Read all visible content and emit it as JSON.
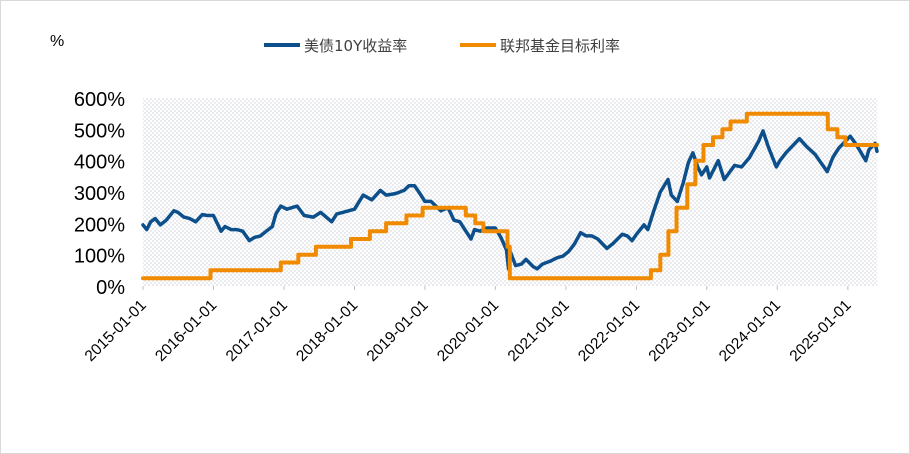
{
  "chart_data": {
    "type": "line",
    "unit_label": "%",
    "ylim": [
      0,
      600
    ],
    "y_ticks": [
      "0%",
      "100%",
      "200%",
      "300%",
      "400%",
      "500%",
      "600%"
    ],
    "x_range": [
      "2015-01-01",
      "2025-06-01"
    ],
    "x_ticks": [
      "2015-01-01",
      "2016-01-01",
      "2017-01-01",
      "2018-01-01",
      "2019-01-01",
      "2020-01-01",
      "2021-01-01",
      "2022-01-01",
      "2023-01-01",
      "2024-01-01",
      "2025-01-01"
    ],
    "legend_position": "top-center",
    "plot_background": "dotted",
    "series": [
      {
        "name": "美债10Y收益率",
        "color": "#0d4f8b",
        "line": "step-free",
        "points": [
          [
            "2015-01-01",
            195
          ],
          [
            "2015-01-20",
            180
          ],
          [
            "2015-02-10",
            205
          ],
          [
            "2015-03-05",
            215
          ],
          [
            "2015-04-01",
            195
          ],
          [
            "2015-05-01",
            210
          ],
          [
            "2015-06-10",
            240
          ],
          [
            "2015-07-01",
            235
          ],
          [
            "2015-08-01",
            220
          ],
          [
            "2015-09-01",
            215
          ],
          [
            "2015-10-01",
            205
          ],
          [
            "2015-11-05",
            228
          ],
          [
            "2015-12-01",
            225
          ],
          [
            "2016-01-01",
            225
          ],
          [
            "2016-02-10",
            175
          ],
          [
            "2016-03-01",
            190
          ],
          [
            "2016-04-01",
            180
          ],
          [
            "2016-05-01",
            180
          ],
          [
            "2016-06-01",
            175
          ],
          [
            "2016-07-05",
            145
          ],
          [
            "2016-08-01",
            155
          ],
          [
            "2016-09-01",
            160
          ],
          [
            "2016-10-01",
            175
          ],
          [
            "2016-11-01",
            190
          ],
          [
            "2016-11-20",
            230
          ],
          [
            "2016-12-15",
            255
          ],
          [
            "2017-01-15",
            245
          ],
          [
            "2017-03-10",
            255
          ],
          [
            "2017-04-15",
            225
          ],
          [
            "2017-06-01",
            220
          ],
          [
            "2017-07-10",
            235
          ],
          [
            "2017-09-05",
            205
          ],
          [
            "2017-10-01",
            230
          ],
          [
            "2017-11-01",
            235
          ],
          [
            "2017-12-01",
            240
          ],
          [
            "2018-01-01",
            245
          ],
          [
            "2018-02-15",
            290
          ],
          [
            "2018-04-01",
            275
          ],
          [
            "2018-05-15",
            305
          ],
          [
            "2018-06-15",
            290
          ],
          [
            "2018-08-01",
            295
          ],
          [
            "2018-09-15",
            305
          ],
          [
            "2018-10-10",
            320
          ],
          [
            "2018-11-08",
            320
          ],
          [
            "2018-12-01",
            300
          ],
          [
            "2019-01-01",
            270
          ],
          [
            "2019-02-01",
            270
          ],
          [
            "2019-03-25",
            240
          ],
          [
            "2019-05-01",
            250
          ],
          [
            "2019-06-01",
            210
          ],
          [
            "2019-07-01",
            205
          ],
          [
            "2019-08-28",
            150
          ],
          [
            "2019-09-15",
            180
          ],
          [
            "2019-10-15",
            175
          ],
          [
            "2019-11-15",
            185
          ],
          [
            "2020-01-01",
            185
          ],
          [
            "2020-01-30",
            155
          ],
          [
            "2020-02-28",
            115
          ],
          [
            "2020-03-09",
            55
          ],
          [
            "2020-03-18",
            110
          ],
          [
            "2020-04-15",
            65
          ],
          [
            "2020-05-15",
            70
          ],
          [
            "2020-06-08",
            85
          ],
          [
            "2020-07-15",
            62
          ],
          [
            "2020-08-05",
            55
          ],
          [
            "2020-09-01",
            70
          ],
          [
            "2020-10-15",
            80
          ],
          [
            "2020-11-15",
            90
          ],
          [
            "2020-12-15",
            95
          ],
          [
            "2021-01-15",
            110
          ],
          [
            "2021-02-15",
            135
          ],
          [
            "2021-03-18",
            170
          ],
          [
            "2021-04-15",
            160
          ],
          [
            "2021-05-15",
            160
          ],
          [
            "2021-06-15",
            150
          ],
          [
            "2021-08-01",
            120
          ],
          [
            "2021-09-01",
            135
          ],
          [
            "2021-10-20",
            165
          ],
          [
            "2021-11-15",
            160
          ],
          [
            "2021-12-10",
            145
          ],
          [
            "2022-01-01",
            165
          ],
          [
            "2022-02-10",
            195
          ],
          [
            "2022-03-01",
            180
          ],
          [
            "2022-04-01",
            240
          ],
          [
            "2022-05-05",
            300
          ],
          [
            "2022-06-14",
            340
          ],
          [
            "2022-07-01",
            290
          ],
          [
            "2022-08-01",
            270
          ],
          [
            "2022-09-01",
            330
          ],
          [
            "2022-09-28",
            395
          ],
          [
            "2022-10-21",
            425
          ],
          [
            "2022-11-15",
            380
          ],
          [
            "2022-12-05",
            355
          ],
          [
            "2023-01-01",
            380
          ],
          [
            "2023-01-15",
            345
          ],
          [
            "2023-03-01",
            400
          ],
          [
            "2023-04-01",
            340
          ],
          [
            "2023-05-25",
            385
          ],
          [
            "2023-07-01",
            380
          ],
          [
            "2023-08-10",
            410
          ],
          [
            "2023-09-25",
            460
          ],
          [
            "2023-10-19",
            495
          ],
          [
            "2023-11-15",
            445
          ],
          [
            "2023-12-27",
            380
          ],
          [
            "2024-01-15",
            400
          ],
          [
            "2024-02-15",
            425
          ],
          [
            "2024-04-25",
            470
          ],
          [
            "2024-06-01",
            445
          ],
          [
            "2024-07-15",
            420
          ],
          [
            "2024-09-16",
            365
          ],
          [
            "2024-10-15",
            410
          ],
          [
            "2024-11-15",
            440
          ],
          [
            "2025-01-13",
            478
          ],
          [
            "2025-02-15",
            450
          ],
          [
            "2025-04-04",
            400
          ],
          [
            "2025-04-20",
            435
          ],
          [
            "2025-05-22",
            455
          ],
          [
            "2025-06-01",
            430
          ]
        ]
      },
      {
        "name": "联邦基金目标利率",
        "color": "#f08a00",
        "line": "step",
        "points": [
          [
            "2015-01-01",
            25
          ],
          [
            "2015-12-17",
            50
          ],
          [
            "2016-12-15",
            75
          ],
          [
            "2017-03-16",
            100
          ],
          [
            "2017-06-15",
            125
          ],
          [
            "2017-12-14",
            150
          ],
          [
            "2018-03-22",
            175
          ],
          [
            "2018-06-14",
            200
          ],
          [
            "2018-09-27",
            225
          ],
          [
            "2018-12-20",
            250
          ],
          [
            "2019-08-01",
            225
          ],
          [
            "2019-09-19",
            200
          ],
          [
            "2019-10-31",
            175
          ],
          [
            "2020-03-04",
            125
          ],
          [
            "2020-03-16",
            25
          ],
          [
            "2022-03-17",
            50
          ],
          [
            "2022-05-05",
            100
          ],
          [
            "2022-06-16",
            175
          ],
          [
            "2022-07-28",
            250
          ],
          [
            "2022-09-22",
            325
          ],
          [
            "2022-11-03",
            400
          ],
          [
            "2022-12-15",
            450
          ],
          [
            "2023-02-02",
            475
          ],
          [
            "2023-03-23",
            500
          ],
          [
            "2023-05-04",
            525
          ],
          [
            "2023-07-27",
            550
          ],
          [
            "2024-09-19",
            500
          ],
          [
            "2024-11-08",
            475
          ],
          [
            "2024-12-19",
            450
          ],
          [
            "2025-06-01",
            450
          ]
        ]
      }
    ]
  }
}
